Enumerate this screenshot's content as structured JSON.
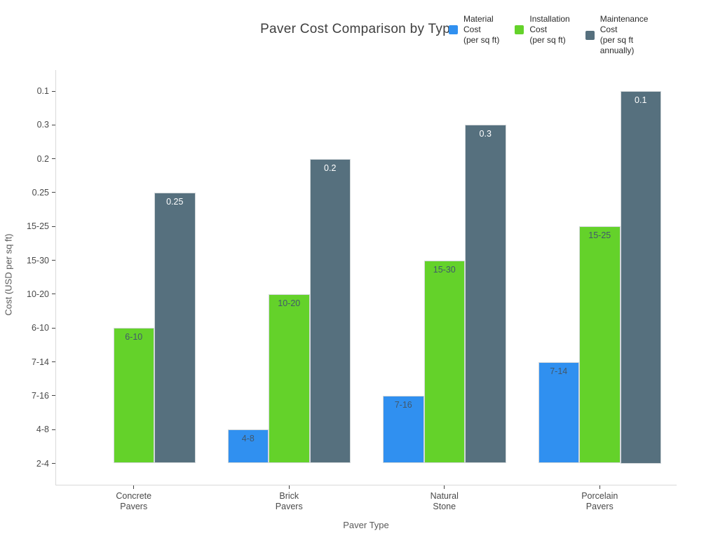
{
  "figure": {
    "title": "Paver Cost Comparison by Type"
  },
  "chart_data": {
    "type": "bar",
    "title": "Paver Cost Comparison by Type",
    "xlabel": "Paver Type",
    "ylabel": "Cost (USD per sq ft)",
    "categories": [
      "Concrete Pavers",
      "Brick Pavers",
      "Natural Stone",
      "Porcelain Pavers"
    ],
    "category_tick_lines": [
      "Concrete\nPavers",
      "Brick\nPavers",
      "Natural\nStone",
      "Porcelain\nPavers"
    ],
    "y_tick_labels_bottom_to_top": [
      "2-4",
      "4-8",
      "7-16",
      "7-14",
      "6-10",
      "10-20",
      "15-30",
      "15-25",
      "0.25",
      "0.2",
      "0.3",
      "0.1"
    ],
    "y_axis_is_categorical": true,
    "series": [
      {
        "name": "Material Cost (per sq ft)",
        "legend_lines": "Material\nCost\n(per sq ft)",
        "color": "#3090F0",
        "values": [
          "2-4",
          "4-8",
          "7-16",
          "7-14"
        ]
      },
      {
        "name": "Installation Cost (per sq ft)",
        "legend_lines": "Installation\nCost\n(per sq ft)",
        "color": "#64D22A",
        "values": [
          "6-10",
          "10-20",
          "15-30",
          "15-25"
        ]
      },
      {
        "name": "Maintenance Cost (per sq ft annually)",
        "legend_lines": "Maintenance\nCost\n(per sq ft\nannually)",
        "color": "#56707E",
        "values": [
          "0.25",
          "0.2",
          "0.3",
          "0.1"
        ]
      }
    ],
    "bar_labels_shown": true,
    "legend_position": "top-right",
    "grid": false
  },
  "colors": {
    "background": "#ffffff",
    "title_text": "#3f3f3f",
    "tick_text": "#4a4a4a",
    "axis_line": "#d9d9d9",
    "tick_mark": "#444444",
    "bar_label_on_light": "#42586b",
    "bar_label_on_dark": "#ffffff"
  }
}
